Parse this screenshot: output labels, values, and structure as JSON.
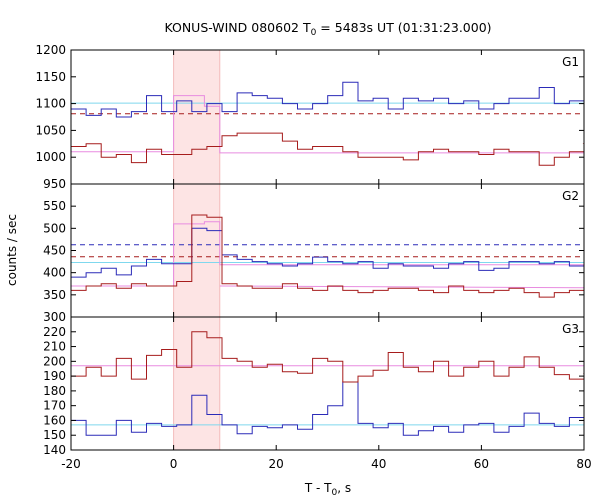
{
  "chart_data": {
    "type": "line",
    "title_main": "KONUS-WIND 080602 T",
    "title_sub": "0",
    "title_tail": " = 5483s UT (01:31:23.000)",
    "xlabel_main": "T - T",
    "xlabel_sub": "0",
    "xlabel_tail": ", s",
    "ylabel": "counts / sec",
    "xlim": [
      -20,
      80
    ],
    "xticks": [
      -20,
      0,
      20,
      40,
      60,
      80
    ],
    "highlight": {
      "x0": 0,
      "x1": 9,
      "color": "#fde4e4"
    },
    "colors": {
      "blue": "#2b2bb8",
      "red": "#a61c1c",
      "cyan": "#7fd8ee",
      "pink": "#e88ce0"
    },
    "panels": [
      {
        "name": "G1",
        "ylim": [
          950,
          1200
        ],
        "yticks": [
          950,
          1000,
          1050,
          1100,
          1150,
          1200
        ],
        "step_series": [
          {
            "color": "blue",
            "x0": -20,
            "dx": 2.944,
            "values": [
              1090,
              1078,
              1090,
              1075,
              1085,
              1115,
              1085,
              1105,
              1085,
              1100,
              1085,
              1120,
              1115,
              1110,
              1100,
              1090,
              1100,
              1115,
              1140,
              1105,
              1110,
              1090,
              1110,
              1105,
              1110,
              1100,
              1105,
              1090,
              1100,
              1110,
              1110,
              1130,
              1100,
              1105,
              1095,
              1100
            ]
          },
          {
            "color": "red",
            "x0": -20,
            "dx": 2.944,
            "values": [
              1020,
              1025,
              1000,
              1005,
              990,
              1015,
              1005,
              1005,
              1015,
              1020,
              1040,
              1045,
              1045,
              1045,
              1030,
              1015,
              1020,
              1020,
              1010,
              1000,
              1000,
              1000,
              995,
              1010,
              1015,
              1010,
              1010,
              1005,
              1015,
              1010,
              1010,
              985,
              1000,
              1010,
              1025,
              1000
            ]
          }
        ],
        "flat_lines": [
          {
            "color": "cyan",
            "y": 1101,
            "dashed": false
          },
          {
            "color": "red",
            "y": 1081,
            "dashed": true
          }
        ],
        "fit_series": [
          {
            "color": "pink",
            "x": [
              -20,
              0,
              0,
              6,
              6,
              9,
              9,
              80
            ],
            "y": [
              1010,
              1010,
              1115,
              1115,
              1095,
              1095,
              1008,
              1008
            ]
          }
        ]
      },
      {
        "name": "G2",
        "ylim": [
          300,
          600
        ],
        "yticks": [
          300,
          350,
          400,
          450,
          500,
          550
        ],
        "step_series": [
          {
            "color": "blue",
            "x0": -20,
            "dx": 2.944,
            "values": [
              390,
              400,
              410,
              395,
              415,
              430,
              420,
              420,
              500,
              495,
              440,
              430,
              425,
              420,
              415,
              420,
              435,
              425,
              420,
              425,
              410,
              420,
              415,
              415,
              410,
              420,
              425,
              405,
              410,
              425,
              425,
              420,
              425,
              415,
              415,
              410
            ]
          },
          {
            "color": "red",
            "x0": -20,
            "dx": 2.944,
            "values": [
              360,
              370,
              375,
              365,
              375,
              370,
              370,
              380,
              530,
              525,
              375,
              370,
              365,
              365,
              375,
              365,
              360,
              370,
              360,
              355,
              360,
              365,
              365,
              360,
              355,
              370,
              360,
              355,
              360,
              365,
              355,
              345,
              355,
              360,
              365,
              370
            ]
          }
        ],
        "flat_lines": [
          {
            "color": "blue",
            "y": 463,
            "dashed": true
          },
          {
            "color": "red",
            "y": 436,
            "dashed": true
          },
          {
            "color": "cyan",
            "y": 423,
            "dashed": false
          }
        ],
        "fit_series": [
          {
            "color": "pink",
            "x": [
              -20,
              0,
              0,
              6,
              6,
              9,
              9,
              80
            ],
            "y": [
              370,
              370,
              510,
              510,
              515,
              515,
              418,
              418
            ]
          },
          {
            "color": "pink",
            "x": [
              9,
              80
            ],
            "y": [
              370,
              366
            ]
          }
        ]
      },
      {
        "name": "G3",
        "ylim": [
          140,
          230
        ],
        "yticks": [
          140,
          150,
          160,
          170,
          180,
          190,
          200,
          210,
          220
        ],
        "step_series": [
          {
            "color": "blue",
            "x0": -20,
            "dx": 2.944,
            "values": [
              160,
              150,
              150,
              160,
              152,
              158,
              156,
              157,
              177,
              164,
              157,
              151,
              156,
              155,
              157,
              154,
              164,
              170,
              186,
              158,
              155,
              158,
              150,
              153,
              156,
              152,
              157,
              158,
              152,
              156,
              165,
              158,
              156,
              162,
              157,
              152
            ]
          },
          {
            "color": "red",
            "x0": -20,
            "dx": 2.944,
            "values": [
              190,
              196,
              190,
              202,
              188,
              204,
              208,
              196,
              220,
              216,
              202,
              200,
              196,
              198,
              193,
              192,
              202,
              200,
              186,
              190,
              194,
              206,
              196,
              193,
              200,
              190,
              196,
              200,
              190,
              196,
              203,
              196,
              191,
              188,
              192,
              208
            ]
          }
        ],
        "flat_lines": [
          {
            "color": "cyan",
            "y": 157,
            "dashed": false
          },
          {
            "color": "pink",
            "y": 197,
            "dashed": false
          }
        ],
        "fit_series": []
      }
    ]
  }
}
